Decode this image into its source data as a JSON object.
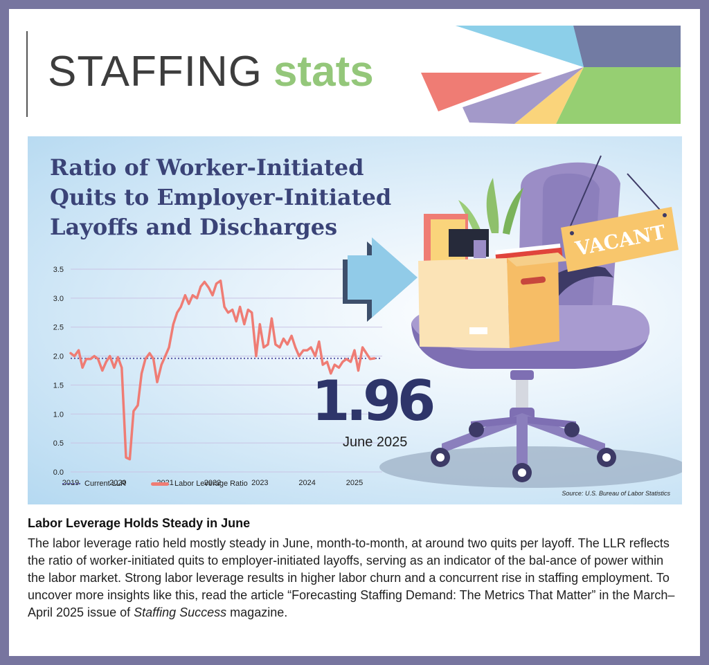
{
  "header": {
    "title_word1": "STAFFING",
    "title_word2": "stats"
  },
  "colors": {
    "border": "#77759f",
    "accent_green": "#94c77a",
    "title_navy": "#3a4377",
    "series_salmon": "#ef7c74",
    "reference_purple": "#5b5aa8"
  },
  "chart_data": {
    "type": "line",
    "title": "Ratio of Worker-Initiated Quits to Employer-Initiated Layoffs and Discharges",
    "ylim": [
      0,
      3.5
    ],
    "y_ticks": [
      "3.5",
      "3.0",
      "2.5",
      "2.0",
      "1.5",
      "1.0",
      "0.5",
      "0.0"
    ],
    "x_ticks": [
      "2019",
      "2020",
      "2021",
      "2022",
      "2023",
      "2024",
      "2025"
    ],
    "xlim": [
      2019,
      2025.5
    ],
    "grid": true,
    "legend_placement": "bottom-left",
    "reference_line": {
      "name": "Current LLR",
      "value": 1.96
    },
    "series": [
      {
        "name": "Labor Leverage Ratio",
        "x": [
          2019.0,
          2019.08,
          2019.17,
          2019.25,
          2019.33,
          2019.42,
          2019.5,
          2019.58,
          2019.67,
          2019.75,
          2019.83,
          2019.92,
          2020.0,
          2020.08,
          2020.17,
          2020.25,
          2020.33,
          2020.42,
          2020.5,
          2020.58,
          2020.67,
          2020.75,
          2020.83,
          2020.92,
          2021.0,
          2021.08,
          2021.17,
          2021.25,
          2021.33,
          2021.42,
          2021.5,
          2021.58,
          2021.67,
          2021.75,
          2021.83,
          2021.92,
          2022.0,
          2022.08,
          2022.17,
          2022.25,
          2022.33,
          2022.42,
          2022.5,
          2022.58,
          2022.67,
          2022.75,
          2022.83,
          2022.92,
          2023.0,
          2023.08,
          2023.17,
          2023.25,
          2023.33,
          2023.42,
          2023.5,
          2023.58,
          2023.67,
          2023.75,
          2023.83,
          2023.92,
          2024.0,
          2024.08,
          2024.17,
          2024.25,
          2024.33,
          2024.42,
          2024.5,
          2024.58,
          2024.67,
          2024.75,
          2024.83,
          2024.92,
          2025.0,
          2025.08,
          2025.17,
          2025.25,
          2025.33,
          2025.42
        ],
        "values": [
          2.05,
          2.0,
          2.1,
          1.8,
          1.95,
          1.95,
          2.0,
          1.95,
          1.75,
          1.9,
          2.0,
          1.8,
          1.98,
          1.8,
          0.25,
          0.22,
          1.05,
          1.15,
          1.7,
          1.95,
          2.05,
          1.95,
          1.55,
          1.85,
          2.0,
          2.15,
          2.55,
          2.75,
          2.85,
          3.05,
          2.9,
          3.05,
          3.0,
          3.2,
          3.28,
          3.18,
          3.05,
          3.25,
          3.3,
          2.85,
          2.75,
          2.8,
          2.6,
          2.85,
          2.55,
          2.8,
          2.75,
          2.0,
          2.55,
          2.15,
          2.2,
          2.65,
          2.2,
          2.15,
          2.3,
          2.2,
          2.35,
          2.15,
          2.0,
          2.1,
          2.1,
          2.15,
          2.0,
          2.25,
          1.85,
          1.9,
          1.7,
          1.85,
          1.8,
          1.9,
          1.95,
          1.9,
          2.1,
          1.75,
          2.15,
          2.05,
          1.95,
          1.96
        ]
      }
    ],
    "current_value": "1.96",
    "current_label": "June 2025",
    "source": "Source: U.S. Bureau of Labor Statistics"
  },
  "legend": {
    "current": "Current LLR",
    "llr": "Labor Leverage Ratio"
  },
  "illustration": {
    "sign_text": "VACANT",
    "icons": [
      "arrow-icon",
      "office-chair-icon",
      "cardboard-box-icon",
      "vacant-sign-icon",
      "plant-icon"
    ]
  },
  "article": {
    "heading": "Labor Leverage Holds Steady in June",
    "body_pre": "The labor leverage ratio held mostly steady in June, month-to-month, at around two quits per layoff. The LLR reflects the ratio of worker-initiated quits to employer-initiated layoffs, serving as an indicator of the bal-ance of power within the labor market. Strong labor leverage results in higher labor churn and a concurrent rise in staffing employment. To uncover more insights like this, read the article “Forecasting Staffing Demand: The Metrics That Matter” in the March–April 2025 issue of ",
    "body_italic": "Staffing Success",
    "body_post": " magazine."
  }
}
